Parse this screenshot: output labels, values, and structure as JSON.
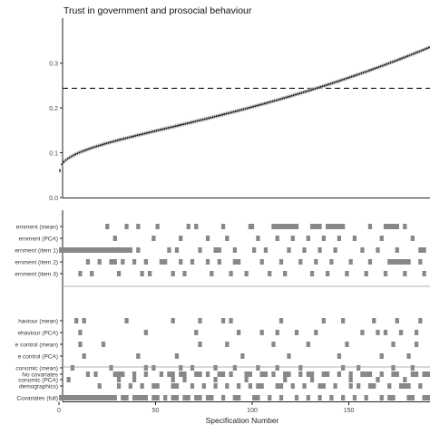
{
  "title": "Trust in government and prosocial behaviour",
  "xlabel": "Specification Number",
  "chart_data": [
    {
      "type": "scatter",
      "title": "Trust in government and prosocial behaviour",
      "xlabel": "",
      "ylabel": "",
      "n_specifications": 192,
      "ylim": [
        0,
        0.35
      ],
      "yticks": [
        "0.0",
        "0.1",
        "0.2",
        "0.3"
      ],
      "y_start": 0.06,
      "y_end": 0.335,
      "dashed_reference_y": 0.244,
      "grid": false,
      "point_color": "#111111",
      "ci_color": "#bbbbbb"
    },
    {
      "type": "heatmap",
      "xlabel": "Specification Number",
      "xlim": [
        0,
        192
      ],
      "xticks": [
        0,
        50,
        100,
        150
      ],
      "tile_color": "#888888",
      "groups": [
        {
          "labels": [
            "ernment (mean)",
            "ernment (PCA)",
            "ernment (item 1)",
            "ernment (item 2)",
            "ernment (item 3)"
          ],
          "rows": [
            [
              [
                24,
                26
              ],
              [
                34,
                36
              ],
              [
                40,
                42
              ],
              [
                50,
                52
              ],
              [
                66,
                68
              ],
              [
                70,
                72
              ],
              [
                84,
                86
              ],
              [
                98,
                101
              ],
              [
                110,
                124
              ],
              [
                130,
                136
              ],
              [
                138,
                148
              ],
              [
                160,
                162
              ],
              [
                168,
                176
              ],
              [
                178,
                180
              ]
            ],
            [
              [
                28,
                30
              ],
              [
                48,
                50
              ],
              [
                62,
                64
              ],
              [
                76,
                78
              ],
              [
                86,
                88
              ],
              [
                102,
                104
              ],
              [
                112,
                114
              ],
              [
                120,
                122
              ],
              [
                128,
                130
              ],
              [
                136,
                138
              ],
              [
                144,
                146
              ],
              [
                152,
                154
              ],
              [
                166,
                168
              ],
              [
                182,
                184
              ]
            ],
            [
              [
                0,
                38
              ],
              [
                40,
                42
              ],
              [
                56,
                58
              ],
              [
                60,
                62
              ],
              [
                72,
                74
              ],
              [
                80,
                84
              ],
              [
                90,
                92
              ],
              [
                100,
                102
              ],
              [
                106,
                108
              ],
              [
                118,
                120
              ],
              [
                126,
                128
              ],
              [
                134,
                136
              ],
              [
                142,
                144
              ],
              [
                156,
                158
              ],
              [
                164,
                166
              ],
              [
                174,
                176
              ],
              [
                186,
                190
              ]
            ],
            [
              [
                14,
                16
              ],
              [
                20,
                22
              ],
              [
                26,
                30
              ],
              [
                32,
                34
              ],
              [
                38,
                40
              ],
              [
                44,
                46
              ],
              [
                52,
                56
              ],
              [
                62,
                64
              ],
              [
                68,
                70
              ],
              [
                76,
                78
              ],
              [
                82,
                84
              ],
              [
                90,
                94
              ],
              [
                104,
                106
              ],
              [
                114,
                116
              ],
              [
                124,
                126
              ],
              [
                132,
                134
              ],
              [
                140,
                142
              ],
              [
                150,
                152
              ],
              [
                160,
                162
              ],
              [
                170,
                182
              ],
              [
                186,
                188
              ]
            ],
            [
              [
                10,
                12
              ],
              [
                16,
                18
              ],
              [
                30,
                32
              ],
              [
                42,
                44
              ],
              [
                46,
                48
              ],
              [
                58,
                60
              ],
              [
                64,
                66
              ],
              [
                78,
                80
              ],
              [
                88,
                90
              ],
              [
                96,
                98
              ],
              [
                108,
                110
              ],
              [
                116,
                118
              ],
              [
                130,
                132
              ],
              [
                138,
                140
              ],
              [
                148,
                150
              ],
              [
                158,
                160
              ],
              [
                168,
                170
              ],
              [
                178,
                180
              ],
              [
                188,
                190
              ]
            ]
          ]
        },
        {
          "labels": [
            "haviour (mean)",
            "ehaviour (PCA)",
            "e control (mean)",
            "e control (PCA)",
            "conomic (mean)",
            "conomic (PCA)"
          ],
          "rows": [
            [
              [
                8,
                10
              ],
              [
                12,
                14
              ],
              [
                34,
                36
              ],
              [
                58,
                60
              ],
              [
                72,
                74
              ],
              [
                84,
                86
              ],
              [
                88,
                90
              ],
              [
                114,
                116
              ],
              [
                136,
                138
              ],
              [
                146,
                148
              ],
              [
                162,
                164
              ],
              [
                174,
                176
              ],
              [
                186,
                188
              ]
            ],
            [
              [
                10,
                12
              ],
              [
                44,
                46
              ],
              [
                70,
                72
              ],
              [
                92,
                94
              ],
              [
                104,
                106
              ],
              [
                112,
                114
              ],
              [
                122,
                124
              ],
              [
                132,
                134
              ],
              [
                156,
                158
              ],
              [
                164,
                166
              ],
              [
                168,
                170
              ],
              [
                176,
                178
              ],
              [
                184,
                186
              ]
            ],
            [
              [
                10,
                12
              ],
              [
                22,
                24
              ],
              [
                72,
                74
              ],
              [
                86,
                88
              ],
              [
                110,
                112
              ],
              [
                128,
                130
              ],
              [
                148,
                150
              ],
              [
                172,
                174
              ],
              [
                184,
                186
              ]
            ],
            [
              [
                12,
                14
              ],
              [
                40,
                42
              ],
              [
                60,
                62
              ],
              [
                94,
                96
              ],
              [
                118,
                120
              ],
              [
                144,
                146
              ],
              [
                166,
                168
              ],
              [
                180,
                182
              ]
            ],
            [
              [
                6,
                8
              ],
              [
                26,
                28
              ],
              [
                44,
                46
              ],
              [
                48,
                50
              ],
              [
                62,
                64
              ],
              [
                68,
                70
              ],
              [
                80,
                82
              ],
              [
                90,
                92
              ],
              [
                102,
                104
              ],
              [
                112,
                114
              ],
              [
                124,
                126
              ],
              [
                146,
                148
              ],
              [
                154,
                156
              ],
              [
                172,
                174
              ],
              [
                182,
                184
              ]
            ],
            [
              [
                4,
                6
              ],
              [
                30,
                32
              ],
              [
                38,
                40
              ],
              [
                58,
                60
              ],
              [
                64,
                66
              ],
              [
                80,
                82
              ],
              [
                96,
                98
              ],
              [
                116,
                118
              ],
              [
                130,
                132
              ],
              [
                150,
                152
              ],
              [
                164,
                166
              ],
              [
                178,
                180
              ]
            ]
          ]
        },
        {
          "labels": [
            "No covariates",
            "demographics)",
            "Covariates (full)"
          ],
          "rows": [
            [
              [
                14,
                16
              ],
              [
                18,
                20
              ],
              [
                28,
                34
              ],
              [
                38,
                40
              ],
              [
                44,
                46
              ],
              [
                52,
                54
              ],
              [
                56,
                60
              ],
              [
                62,
                66
              ],
              [
                70,
                74
              ],
              [
                76,
                78
              ],
              [
                82,
                86
              ],
              [
                88,
                90
              ],
              [
                96,
                100
              ],
              [
                104,
                108
              ],
              [
                110,
                112
              ],
              [
                116,
                120
              ],
              [
                124,
                126
              ],
              [
                128,
                132
              ],
              [
                136,
                140
              ],
              [
                144,
                146
              ],
              [
                150,
                152
              ],
              [
                156,
                162
              ],
              [
                166,
                168
              ],
              [
                172,
                176
              ],
              [
                182,
                186
              ],
              [
                188,
                192
              ]
            ],
            [
              [
                20,
                22
              ],
              [
                30,
                32
              ],
              [
                36,
                38
              ],
              [
                42,
                44
              ],
              [
                48,
                52
              ],
              [
                58,
                62
              ],
              [
                68,
                70
              ],
              [
                74,
                76
              ],
              [
                80,
                82
              ],
              [
                86,
                88
              ],
              [
                92,
                94
              ],
              [
                98,
                100
              ],
              [
                102,
                106
              ],
              [
                112,
                116
              ],
              [
                120,
                122
              ],
              [
                126,
                128
              ],
              [
                134,
                138
              ],
              [
                142,
                144
              ],
              [
                150,
                152
              ],
              [
                154,
                156
              ],
              [
                160,
                164
              ],
              [
                170,
                172
              ],
              [
                176,
                182
              ],
              [
                186,
                188
              ]
            ],
            [
              [
                0,
                30
              ],
              [
                32,
                36
              ],
              [
                38,
                46
              ],
              [
                48,
                52
              ],
              [
                54,
                56
              ],
              [
                58,
                62
              ],
              [
                64,
                68
              ],
              [
                70,
                74
              ],
              [
                76,
                80
              ],
              [
                84,
                86
              ],
              [
                90,
                94
              ],
              [
                100,
                104
              ],
              [
                108,
                110
              ],
              [
                114,
                116
              ],
              [
                122,
                124
              ],
              [
                128,
                130
              ],
              [
                134,
                136
              ],
              [
                140,
                142
              ],
              [
                146,
                148
              ],
              [
                152,
                154
              ],
              [
                158,
                160
              ],
              [
                166,
                168
              ],
              [
                170,
                174
              ],
              [
                180,
                184
              ],
              [
                188,
                192
              ]
            ]
          ]
        }
      ]
    }
  ]
}
